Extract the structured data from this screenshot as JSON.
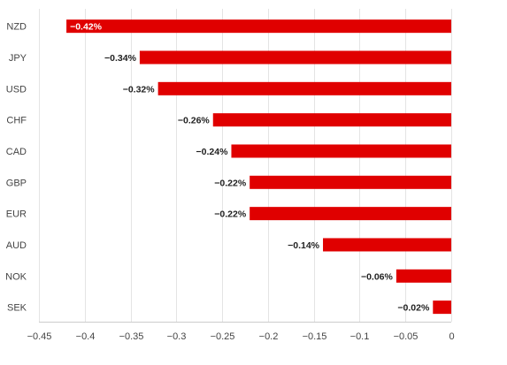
{
  "chart_data": {
    "type": "bar",
    "orientation": "horizontal",
    "categories": [
      "NZD",
      "JPY",
      "USD",
      "CHF",
      "CAD",
      "GBP",
      "EUR",
      "AUD",
      "NOK",
      "SEK"
    ],
    "values": [
      -0.42,
      -0.34,
      -0.32,
      -0.26,
      -0.24,
      -0.22,
      -0.22,
      -0.14,
      -0.06,
      -0.02
    ],
    "data_labels": [
      "−0.42%",
      "−0.34%",
      "−0.32%",
      "−0.26%",
      "−0.24%",
      "−0.22%",
      "−0.22%",
      "−0.14%",
      "−0.06%",
      "−0.02%"
    ],
    "xlim": [
      -0.45,
      0
    ],
    "x_ticks": [
      -0.45,
      -0.4,
      -0.35,
      -0.3,
      -0.25,
      -0.2,
      -0.15,
      -0.1,
      -0.05,
      0
    ],
    "x_tick_labels": [
      "−0.45",
      "−0.4",
      "−0.35",
      "−0.3",
      "−0.25",
      "−0.2",
      "−0.15",
      "−0.1",
      "−0.05",
      "0"
    ],
    "title": "",
    "xlabel": "",
    "ylabel": "",
    "grid": "vertical",
    "legend": "none",
    "bar_color": "#e00000",
    "label_color": "#222222",
    "label_on_bar_color": "#ffffff"
  }
}
